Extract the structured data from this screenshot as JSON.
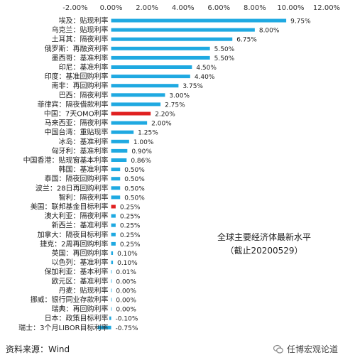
{
  "source": "资料来源：Wind",
  "brand": "任博宏观论道",
  "colors": {
    "bar": "#1fa9e1",
    "highlight": "#e02020"
  },
  "chart_data": {
    "type": "bar",
    "orientation": "horizontal",
    "title": "全球主要经济体最新水平",
    "subtitle": "（截止20200529）",
    "xlim": [
      -2,
      12
    ],
    "xticks": [
      "-2.00%",
      "0.00%",
      "2.00%",
      "4.00%",
      "6.00%",
      "8.00%",
      "10.00%",
      "12.00%"
    ],
    "xticks_position": "top",
    "grid": false,
    "categories": [
      "埃及：贴现利率",
      "乌克兰：贴现利率",
      "土耳其：隔夜利率",
      "俄罗斯：再融资利率",
      "墨西哥：基准利率",
      "印尼：基准利率",
      "印度：基准回购利率",
      "南非：再回购利率",
      "巴西：隔夜利率",
      "菲律宾：隔夜借款利率",
      "中国：7天OMO利率",
      "马来西亚：隔夜利率",
      "中国台湾：重贴现率",
      "冰岛：基准利率",
      "匈牙利：基准利率",
      "中国香港：贴现窗基本利率",
      "韩国：基准利率",
      "泰国：隔夜回购利率",
      "波兰：28日再回购利率",
      "智利：隔夜利率",
      "美国：联邦基金目标利率",
      "澳大利亚：隔夜利率",
      "新西兰：基准利率",
      "加拿大：隔夜目标利率",
      "捷克：2周再回购利率",
      "英国：再回购利率",
      "以色列：基准利率",
      "保加利亚：基本利率",
      "欧元区：基准利率",
      "丹麦：贴现利率",
      "挪威：银行同业存款利率",
      "瑞典：再回购利率",
      "日本：政策目标利率",
      "瑞士：3个月LIBOR目标利率"
    ],
    "values": [
      9.75,
      8.0,
      6.75,
      5.5,
      5.5,
      4.5,
      4.4,
      3.75,
      3.0,
      2.75,
      2.2,
      2.0,
      1.25,
      1.0,
      0.9,
      0.86,
      0.5,
      0.5,
      0.5,
      0.5,
      0.25,
      0.25,
      0.25,
      0.25,
      0.25,
      0.1,
      0.1,
      0.01,
      0.0,
      0.0,
      0.0,
      0.0,
      -0.1,
      -0.75
    ],
    "value_labels": [
      "9.75%",
      "8.00%",
      "6.75%",
      "5.50%",
      "5.50%",
      "4.50%",
      "4.40%",
      "3.75%",
      "3.00%",
      "2.75%",
      "2.20%",
      "2.00%",
      "1.25%",
      "1.00%",
      "0.90%",
      "0.86%",
      "0.50%",
      "0.50%",
      "0.50%",
      "0.50%",
      "0.25%",
      "0.25%",
      "0.25%",
      "0.25%",
      "0.25%",
      "0.10%",
      "0.10%",
      "0.01%",
      "0.00%",
      "0.00%",
      "0.00%",
      "0.00%",
      "-0.10%",
      "-0.75%"
    ],
    "highlight": [
      "中国：7天OMO利率",
      "美国：联邦基金目标利率"
    ]
  }
}
